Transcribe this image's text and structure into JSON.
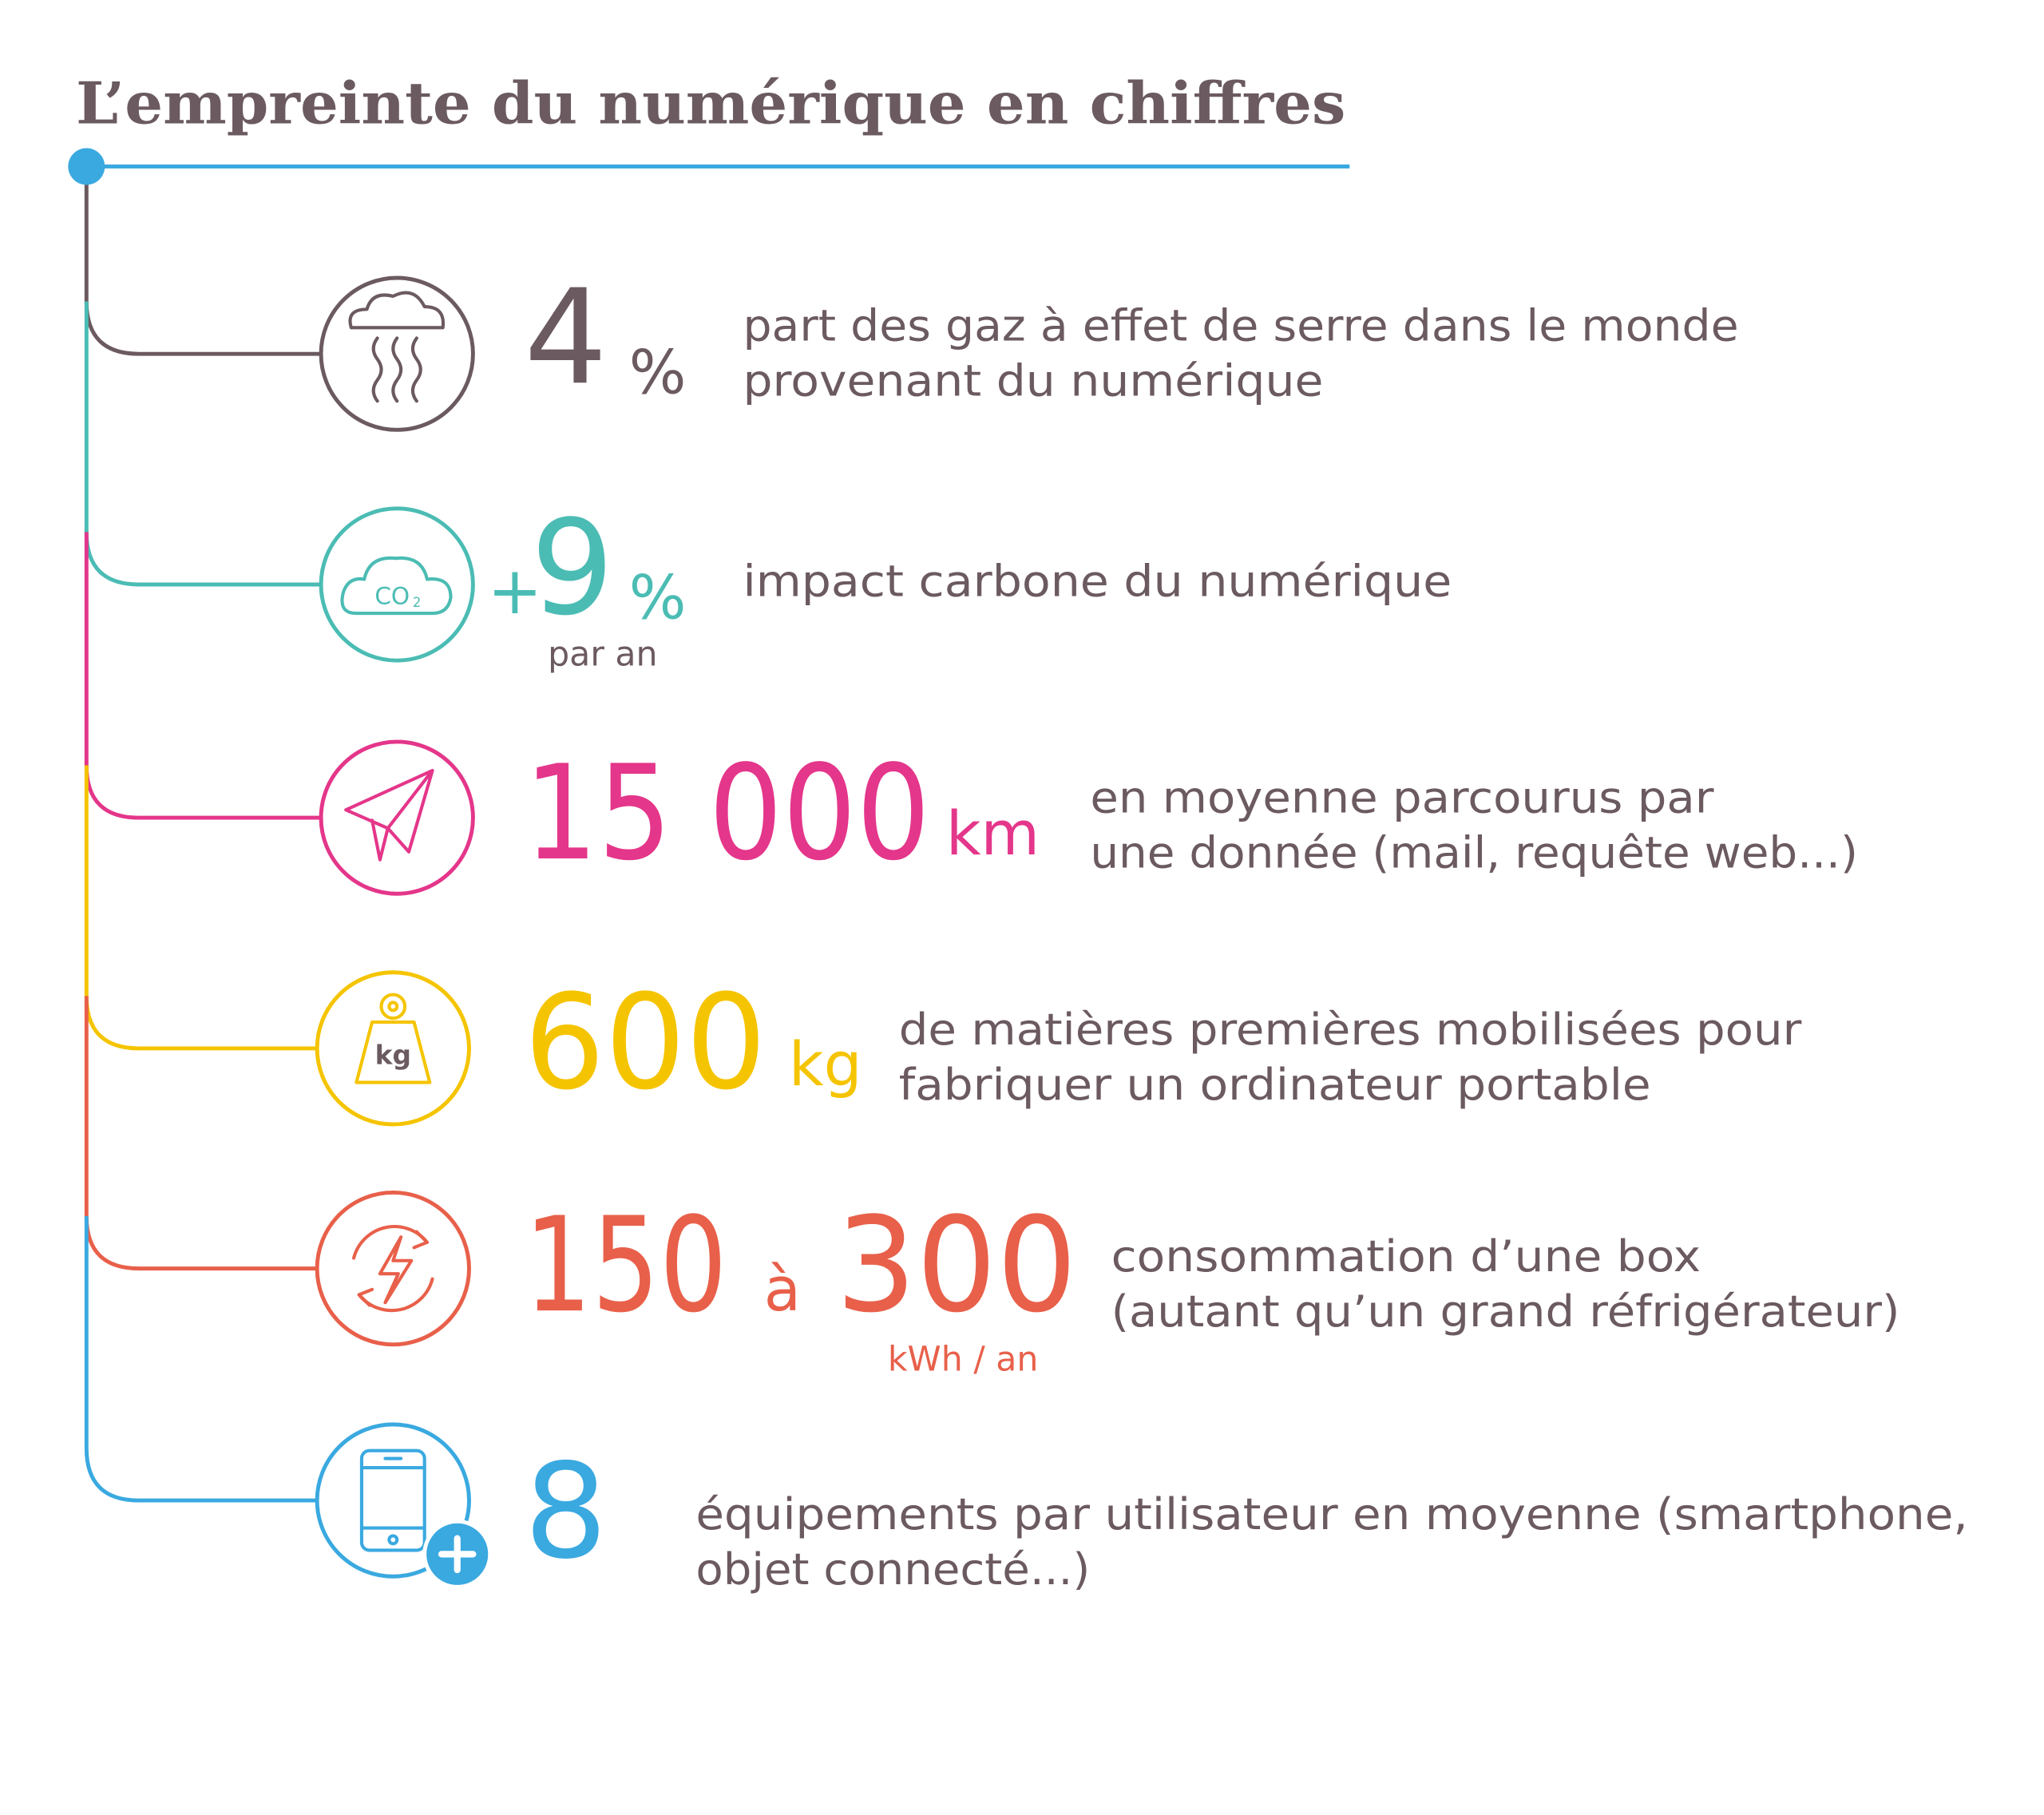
{
  "title": "L’empreinte du numérique en chiffres",
  "items": [
    {
      "figure": "4",
      "unit": "%",
      "description": [
        "part des gaz à effet de serre dans le monde",
        "provenant du numérique"
      ]
    },
    {
      "prefix": "+",
      "figure": "9",
      "unit": "%",
      "note": "par an",
      "icon_text": [
        "CO",
        "2"
      ],
      "description": [
        "impact carbone du numérique"
      ]
    },
    {
      "figure": "15 000",
      "unit": "km",
      "description": [
        "en moyenne parcourus par",
        "une donnée (mail, requête web...)"
      ]
    },
    {
      "figure": "600",
      "unit": "kg",
      "icon_text": [
        "kg"
      ],
      "description": [
        "de matières premières mobilisées pour",
        "fabriquer un ordinateur portable"
      ]
    },
    {
      "figure": "150",
      "connector": "à",
      "figure_to": "300",
      "note": "kWh / an",
      "description": [
        "consommation d’une box",
        "(autant qu’un grand réfrigérateur)"
      ]
    },
    {
      "figure": "8",
      "description": [
        "équipements par utilisateur en moyenne (smartphone,",
        "objet connecté...)"
      ]
    }
  ]
}
